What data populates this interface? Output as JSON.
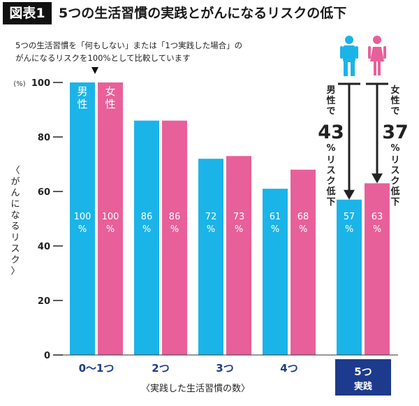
{
  "header": {
    "badge": "図表1",
    "title": "5つの生活習慣の実践とがんになるリスクの低下"
  },
  "note": {
    "line1": "5つの生活習慣を「何もしない」または「1つ実践した場合」の",
    "line2": "がんになるリスクを100%として比較しています"
  },
  "chart_data": {
    "type": "bar",
    "categories": [
      "0〜1つ",
      "2つ",
      "3つ",
      "4つ",
      "5つ 実践"
    ],
    "category_lines": [
      [
        "0〜1つ"
      ],
      [
        "2つ"
      ],
      [
        "3つ"
      ],
      [
        "4つ"
      ],
      [
        "5つ",
        "実践"
      ]
    ],
    "series": [
      {
        "name": "男性",
        "values": [
          100,
          86,
          72,
          61,
          57
        ],
        "labels": [
          "100%",
          "86%",
          "72%",
          "61%",
          "57%"
        ]
      },
      {
        "name": "女性",
        "values": [
          100,
          86,
          73,
          68,
          63
        ],
        "labels": [
          "100%",
          "86%",
          "73%",
          "68%",
          "63%"
        ]
      }
    ],
    "ylabel": "〈がんになるリスク〉",
    "ylabel_unit": "(%)",
    "xlabel": "〈実践した生活習慣の数〉",
    "ylim": [
      0,
      100
    ],
    "yticks": [
      0,
      20,
      40,
      60,
      80,
      100
    ],
    "colors": {
      "male": "#1bb4e8",
      "female": "#e8609a",
      "highlight": "#1d3b8c"
    },
    "annotations": {
      "male": {
        "prefix": "男性で",
        "value": "43",
        "unit": "%",
        "suffix": "リスク低下"
      },
      "female": {
        "prefix": "女性で",
        "value": "37",
        "unit": "%",
        "suffix": "リスク低下"
      }
    },
    "icons": [
      "male-person-icon",
      "female-person-icon",
      "down-triangle-icon"
    ]
  }
}
